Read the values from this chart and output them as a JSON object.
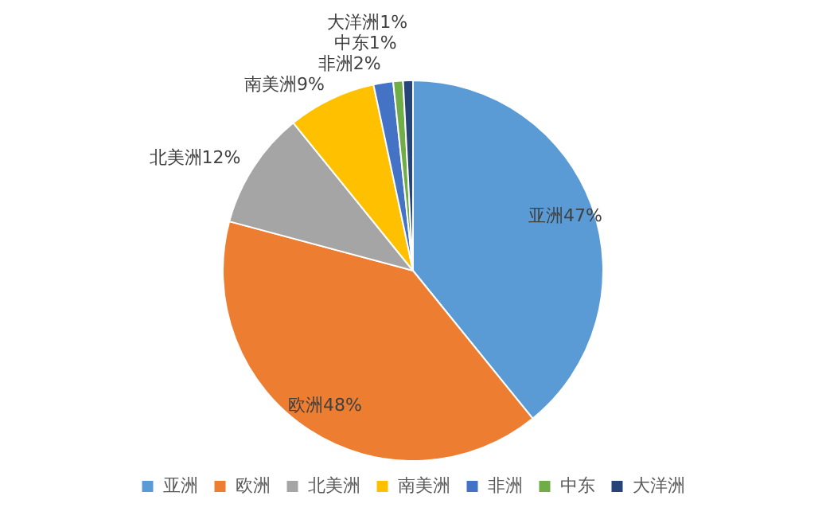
{
  "chart_data": {
    "type": "pie",
    "categories": [
      "亚洲",
      "欧洲",
      "北美洲",
      "南美洲",
      "非洲",
      "中东",
      "大洋洲"
    ],
    "values": [
      47,
      48,
      12,
      9,
      2,
      1,
      1
    ],
    "value_labels": [
      "47%",
      "48%",
      "12%",
      "9%",
      "2%",
      "1%",
      "1%"
    ],
    "colors": [
      "#5b9bd5",
      "#ed7d31",
      "#a5a5a5",
      "#ffc000",
      "#4472c4",
      "#70ad47",
      "#264478"
    ],
    "legend": "bottom"
  }
}
